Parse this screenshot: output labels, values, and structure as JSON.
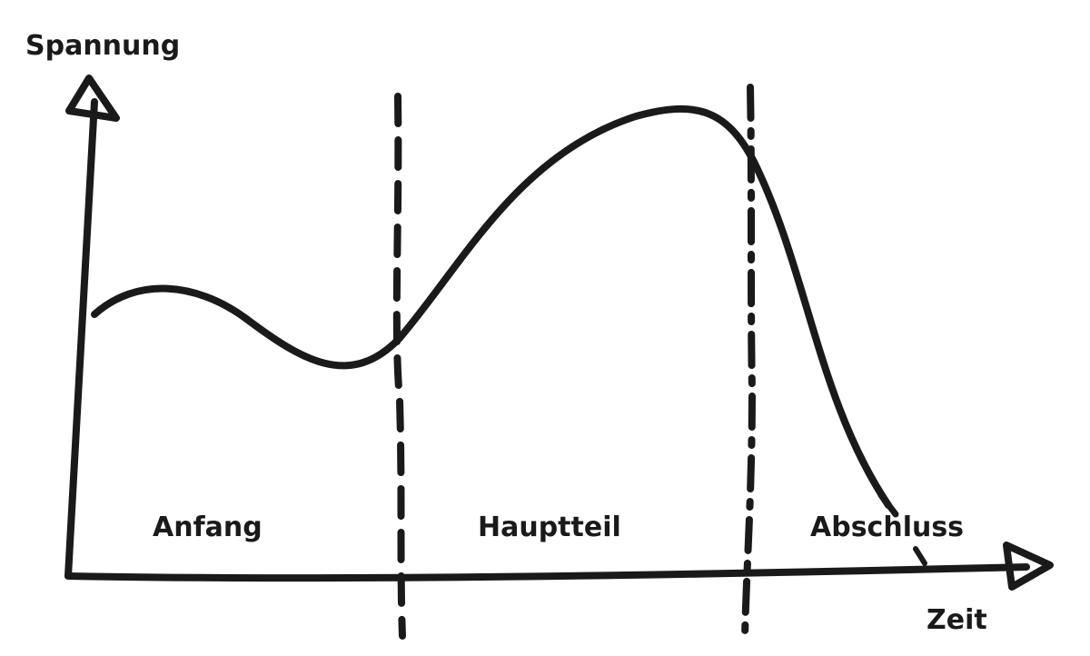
{
  "diagram": {
    "y_axis_label": "Spannung",
    "x_axis_label": "Zeit",
    "sections": [
      "Anfang",
      "Hauptteil",
      "Abschluss"
    ],
    "colors": {
      "ink": "#1a1a1a",
      "background": "#ffffff"
    }
  }
}
